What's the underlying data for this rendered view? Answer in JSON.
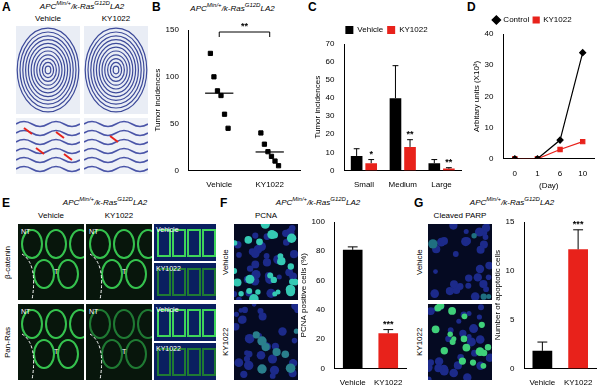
{
  "figure": {
    "panels": [
      {
        "panel": "A",
        "genotype": [
          "APC",
          "Min/+",
          "/k-Ras",
          "G12D",
          "LA2"
        ],
        "columns": [
          "Vehicle",
          "KY1022"
        ]
      },
      {
        "panel": "E",
        "genotype": [
          "APC",
          "Min/+",
          "/k-Ras",
          "G12D",
          "LA2"
        ],
        "columns": [
          "Vehicle",
          "KY1022"
        ],
        "rows": [
          "β-catenin",
          "Pan-Ras"
        ],
        "region_labels": [
          "NT",
          "T"
        ],
        "inset_labels": [
          "Vehicle",
          "KY1022"
        ]
      },
      {
        "panel": "F",
        "genotype": [
          "APC",
          "Min/+",
          "/k-Ras",
          "G12D",
          "LA2"
        ],
        "stain": "PCNA",
        "rows": [
          "Vehicle",
          "KY1022"
        ]
      },
      {
        "panel": "G",
        "genotype": [
          "APC",
          "Min/+",
          "/k-Ras",
          "G12D",
          "LA2"
        ],
        "stain": "Cleaved PARP",
        "rows": [
          "Vehicle",
          "KY1022"
        ]
      }
    ]
  },
  "chart_data": [
    {
      "panel": "B",
      "type": "dot",
      "title": [
        "APC",
        "Min/+",
        "/k-Ras",
        "G12D",
        "LA2"
      ],
      "y_label": "Tumor incidences",
      "categories": [
        "Vehicle",
        "KY1022"
      ],
      "values": [
        [
          125,
          100,
          85,
          80,
          60,
          45
        ],
        [
          40,
          28,
          20,
          15,
          10,
          5
        ]
      ],
      "means": [
        82.5,
        19.7
      ],
      "annotation": "**",
      "marker": "square",
      "color": "#000000",
      "ylim": [
        0,
        150
      ],
      "yticks": [
        0,
        50,
        100,
        150
      ],
      "grid": false
    },
    {
      "panel": "C",
      "type": "bar",
      "y_label": "Tumor incidences",
      "categories": [
        "Small",
        "Medium",
        "Large"
      ],
      "series": [
        {
          "name": "Vehicle",
          "color": "#000000",
          "values": [
            8,
            40,
            4
          ],
          "errors": [
            4,
            18,
            2
          ]
        },
        {
          "name": "KY1022",
          "color": "#e8221b",
          "values": [
            4,
            13,
            1
          ],
          "errors": [
            2,
            4,
            0.5
          ],
          "annotations": [
            {
              "category": "Small",
              "text": "*"
            },
            {
              "category": "Medium",
              "text": "**"
            },
            {
              "category": "Large",
              "text": "**"
            }
          ]
        }
      ],
      "ylim": [
        0,
        70
      ],
      "yticks": [
        0,
        10,
        20,
        30,
        40,
        50,
        60,
        70
      ],
      "legend": "top",
      "grid": false
    },
    {
      "panel": "D",
      "type": "line",
      "x_label": "(Day)",
      "y_label": "Arbitary units (X10³)",
      "categories": [
        0,
        1,
        6,
        10
      ],
      "series": [
        {
          "name": "Control",
          "color": "#000000",
          "marker": "diamond",
          "values": [
            0,
            0,
            6,
            34
          ]
        },
        {
          "name": "KY1022",
          "color": "#e8221b",
          "marker": "square",
          "values": [
            0,
            0,
            3,
            5.5
          ]
        }
      ],
      "ylim": [
        0,
        40
      ],
      "yticks": [
        0,
        10,
        20,
        30,
        40
      ],
      "legend": "top",
      "grid": false
    },
    {
      "panel": "F",
      "type": "bar",
      "y_label": "PCNA positive cells (%)",
      "categories": [
        "Vehicle",
        "KY1022"
      ],
      "values": [
        81,
        24
      ],
      "errors": [
        2,
        2.5
      ],
      "colors": [
        "#000000",
        "#e8221b"
      ],
      "annotations": [
        {
          "category": "KY1022",
          "text": "***"
        }
      ],
      "ylim": [
        0,
        100
      ],
      "yticks": [
        0,
        20,
        40,
        60,
        80,
        100
      ],
      "grid": false
    },
    {
      "panel": "G",
      "type": "bar",
      "y_label": "Number of apoptotic cells",
      "categories": [
        "Vehicle",
        "KY1022"
      ],
      "values": [
        1.8,
        12.2
      ],
      "errors": [
        0.9,
        2
      ],
      "colors": [
        "#000000",
        "#e8221b"
      ],
      "annotations": [
        {
          "category": "KY1022",
          "text": "***"
        }
      ],
      "ylim": [
        0,
        15
      ],
      "yticks": [
        0,
        5,
        10,
        15
      ],
      "grid": false
    }
  ]
}
